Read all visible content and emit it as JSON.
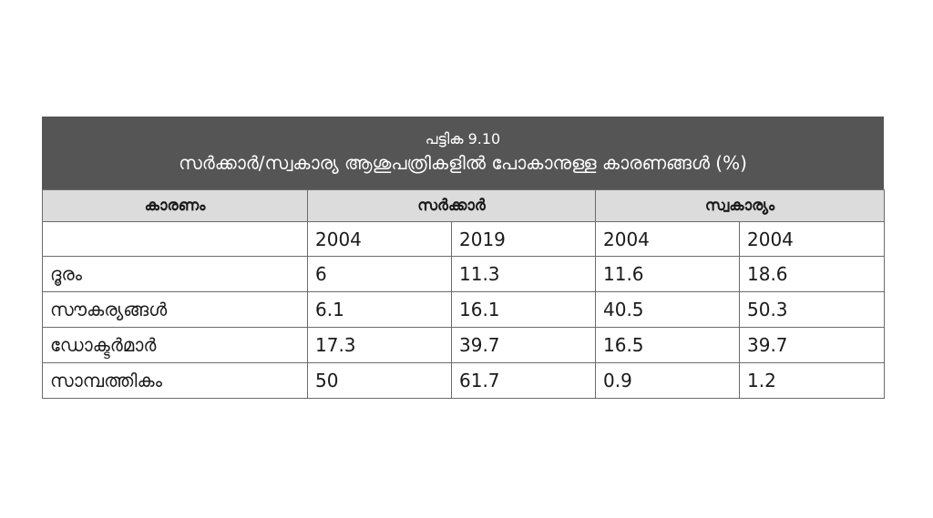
{
  "table": {
    "number": "പട്ടിക 9.10",
    "title": "സർക്കാർ/സ്വകാര്യ ആശുപത്രികളിൽ പോകാനുള്ള കാരണങ്ങൾ (%)",
    "columns": {
      "reason": "കാരണം",
      "government": "സർക്കാർ",
      "private": "സ്വകാര്യം"
    },
    "years": [
      "2004",
      "2019",
      "2004",
      "2004"
    ],
    "rows": [
      {
        "label": "ദൂരം",
        "values": [
          "6",
          "11.3",
          "11.6",
          "18.6"
        ]
      },
      {
        "label": "സൗകര്യങ്ങൾ",
        "values": [
          "6.1",
          "16.1",
          "40.5",
          "50.3"
        ]
      },
      {
        "label": "ഡോക്ടർമാർ",
        "values": [
          "17.3",
          "39.7",
          "16.5",
          "39.7"
        ]
      },
      {
        "label": "സാമ്പത്തികം",
        "values": [
          "50",
          "61.7",
          "0.9",
          "1.2"
        ]
      }
    ]
  }
}
